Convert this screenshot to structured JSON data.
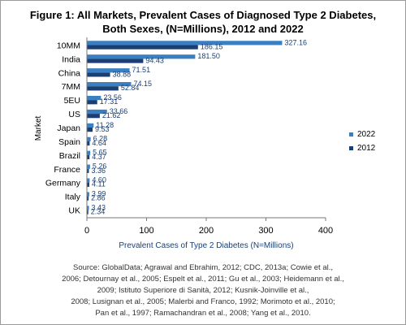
{
  "chart_data": {
    "type": "bar",
    "orientation": "horizontal",
    "title_lines": [
      "Figure 1: All Markets, Prevalent Cases of Diagnosed Type 2 Diabetes,",
      "Both Sexes, (N=Millions), 2012 and 2022"
    ],
    "xlabel": "Prevalent Cases of Type 2 Diabetes (N=Millions)",
    "ylabel": "Market",
    "xlim": [
      0,
      400
    ],
    "xticks": [
      "0",
      "100",
      "200",
      "300",
      "400"
    ],
    "categories": [
      "10MM",
      "India",
      "China",
      "7MM",
      "5EU",
      "US",
      "Japan",
      "Spain",
      "Brazil",
      "France",
      "Germany",
      "Italy",
      "UK"
    ],
    "series": [
      {
        "name": "2022",
        "color": "#3a7fc1",
        "values": [
          327.16,
          181.5,
          71.51,
          74.15,
          23.56,
          33.66,
          11.28,
          6.28,
          5.65,
          5.26,
          4.6,
          3.99,
          3.43
        ],
        "labels": [
          "327.16",
          "181.50",
          "71.51",
          "74.15",
          "23.56",
          "33.66",
          "11.28",
          "6.28",
          "5.65",
          "5.26",
          "4.60",
          "3.99",
          "3.43"
        ]
      },
      {
        "name": "2012",
        "color": "#1b3f73",
        "values": [
          186.15,
          94.43,
          38.88,
          52.84,
          17.31,
          21.62,
          9.53,
          4.64,
          4.37,
          3.36,
          4.11,
          2.86,
          2.34
        ],
        "labels": [
          "186.15",
          "94.43",
          "38.88",
          "52.84",
          "17.31",
          "21.62",
          "9.53",
          "4.64",
          "4.37",
          "3.36",
          "4.11",
          "2.86",
          "2.34"
        ]
      }
    ],
    "legend_position": "right",
    "grid": false
  },
  "source_lines": [
    "Source: GlobalData; Agrawal and Ebrahim, 2012; CDC, 2013a; Cowie et al.,",
    "2006; Detournay et al., 2005; Espelt et al., 2011; Gu et al., 2003; Heidemann et al.,",
    "2009; Istituto Superiore di Sanità, 2012; Kusnik-Joinville et al.,",
    "2008; Lusignan et al., 2005; Malerbi and Franco, 1992; Morimoto et al., 2010;",
    "Pan et al., 1997; Ramachandran et al., 2008; Yang et al., 2010."
  ]
}
